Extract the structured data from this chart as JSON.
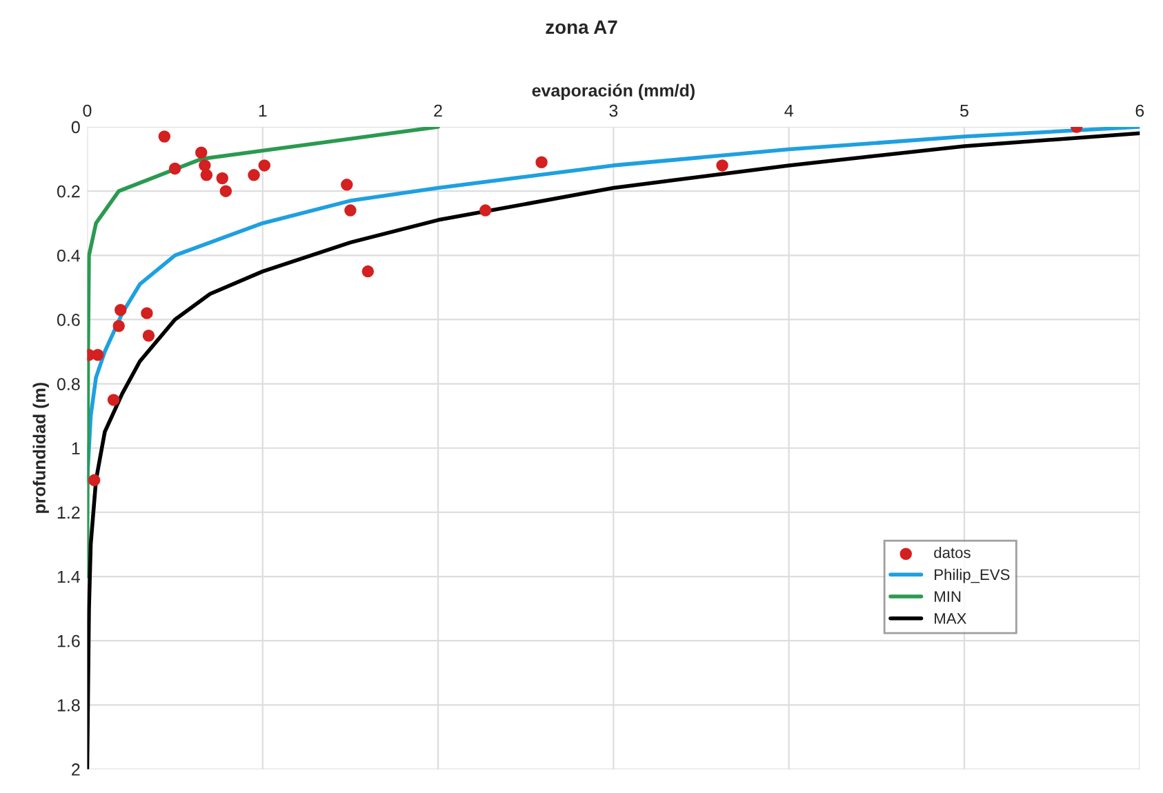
{
  "chart_data": {
    "type": "line",
    "title": "zona A7",
    "xlabel": "evaporación (mm/d)",
    "ylabel": "profundidad (m)",
    "xlim": [
      0,
      6
    ],
    "xticks": [
      0,
      1,
      2,
      3,
      4,
      5,
      6
    ],
    "ylim": [
      2,
      0
    ],
    "yticks": [
      0,
      0.2,
      0.4,
      0.6,
      0.8,
      1,
      1.2,
      1.4,
      1.6,
      1.8,
      2
    ],
    "grid": true,
    "legend": "bottom right",
    "series": [
      {
        "name": "datos",
        "type": "scatter",
        "marker": "circle",
        "color": "#d42020",
        "x": [
          0.44,
          0.5,
          0.65,
          0.67,
          0.68,
          0.77,
          0.79,
          0.95,
          1.01,
          1.48,
          1.5,
          1.6,
          2.27,
          2.59,
          0.19,
          0.18,
          0.34,
          0.35,
          0.01,
          0.06,
          0.15,
          0.04,
          3.62,
          5.64
        ],
        "values": [
          0.03,
          0.13,
          0.08,
          0.12,
          0.15,
          0.16,
          0.2,
          0.15,
          0.12,
          0.18,
          0.26,
          0.45,
          0.26,
          0.11,
          0.57,
          0.62,
          0.58,
          0.65,
          0.71,
          0.71,
          0.85,
          1.1,
          0.12,
          0.0
        ]
      },
      {
        "name": "Philip_EVS",
        "marker": "none",
        "color": "#1ea0e0",
        "x": [
          6,
          5,
          4,
          3,
          2,
          1.5,
          1,
          0.5,
          0.3,
          0.2,
          0.1,
          0.05,
          0.02,
          0
        ],
        "values": [
          0.0,
          0.03,
          0.07,
          0.12,
          0.19,
          0.23,
          0.3,
          0.4,
          0.49,
          0.58,
          0.7,
          0.78,
          0.9,
          1.1
        ]
      },
      {
        "name": "MIN",
        "marker": "none",
        "color": "#2a9a50",
        "x": [
          2,
          0.65,
          0.18,
          0.05,
          0.01,
          0.005,
          0
        ],
        "values": [
          0.0,
          0.1,
          0.2,
          0.3,
          0.4,
          0.7,
          1.4
        ]
      },
      {
        "name": "MAX",
        "marker": "none",
        "color": "#000000",
        "x": [
          6,
          5,
          4,
          3,
          2,
          1.5,
          1,
          0.7,
          0.5,
          0.3,
          0.2,
          0.1,
          0.05,
          0.02,
          0.01,
          0
        ],
        "values": [
          0.02,
          0.06,
          0.12,
          0.19,
          0.29,
          0.36,
          0.45,
          0.52,
          0.6,
          0.73,
          0.83,
          0.95,
          1.1,
          1.3,
          1.5,
          2.0
        ]
      }
    ]
  }
}
